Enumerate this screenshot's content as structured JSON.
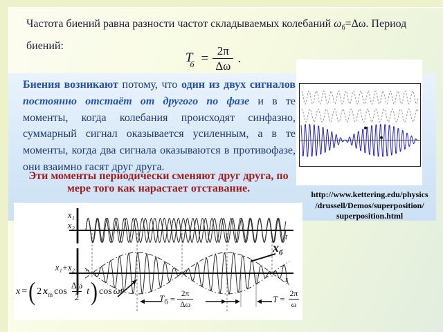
{
  "colors": {
    "accent_blue_bold": "#2253a8",
    "text_navy": "#1d3a70",
    "highlight_red": "#9e1c1e",
    "band_blue": "#d7e8f8",
    "wave_blue": "#2525cc",
    "wave_gray": "#909090"
  },
  "intro": {
    "before_omega": "Частота биений равна разности частот складываемых колебаний ",
    "omega": "ω",
    "omega_sub": "б",
    "after_omega": "=Δω. Период биений:"
  },
  "period_formula": {
    "symbol": "T",
    "symbol_sub": "б",
    "equals": "=",
    "numerator": "2π",
    "denominator": "Δω",
    "period": "."
  },
  "body": {
    "bold1": "Биения возникают",
    "text1": " потому, что ",
    "bold2": "один из двух сигналов",
    "bold_italic": " постоянно отстаёт от другого по фазе",
    "text2": " и в те моменты, когда колебания происходят синфазно, суммарный сигнал оказывается усиленным, а в те моменты, когда два сигнала оказываются в противофазе, они взаимно гасят друг друга."
  },
  "highlight": "Эти моменты периодически сменяют друг друга, по мере того как нарастает отставание.",
  "link": {
    "line1": "http://www.kettering.edu/physics",
    "line2": "/drussell/Demos/superposition/",
    "line3": "superposition.html"
  },
  "diagram": {
    "x1": "x₁",
    "x2": "x₂",
    "sum": "x₁+x₂",
    "t": "t",
    "beat_env_symbol": "x",
    "beat_env_sub": "б",
    "beat_period": {
      "symbol": "T",
      "sub": "б",
      "equals": "=",
      "num": "2π",
      "den": "Δω"
    },
    "carrier_period": {
      "symbol": "T",
      "equals": "=",
      "num": "2π",
      "den": "ω"
    },
    "sum_formula": {
      "lhs": "x",
      "equals": "=",
      "open": "(",
      "coef": "2",
      "amp": "x",
      "amp_sub": "m",
      "cos1": "cos",
      "frac_num": "Δω",
      "frac_den": "2",
      "t": "t",
      "close": ")",
      "cos2": "cos",
      "omega_t": "ωt"
    }
  }
}
